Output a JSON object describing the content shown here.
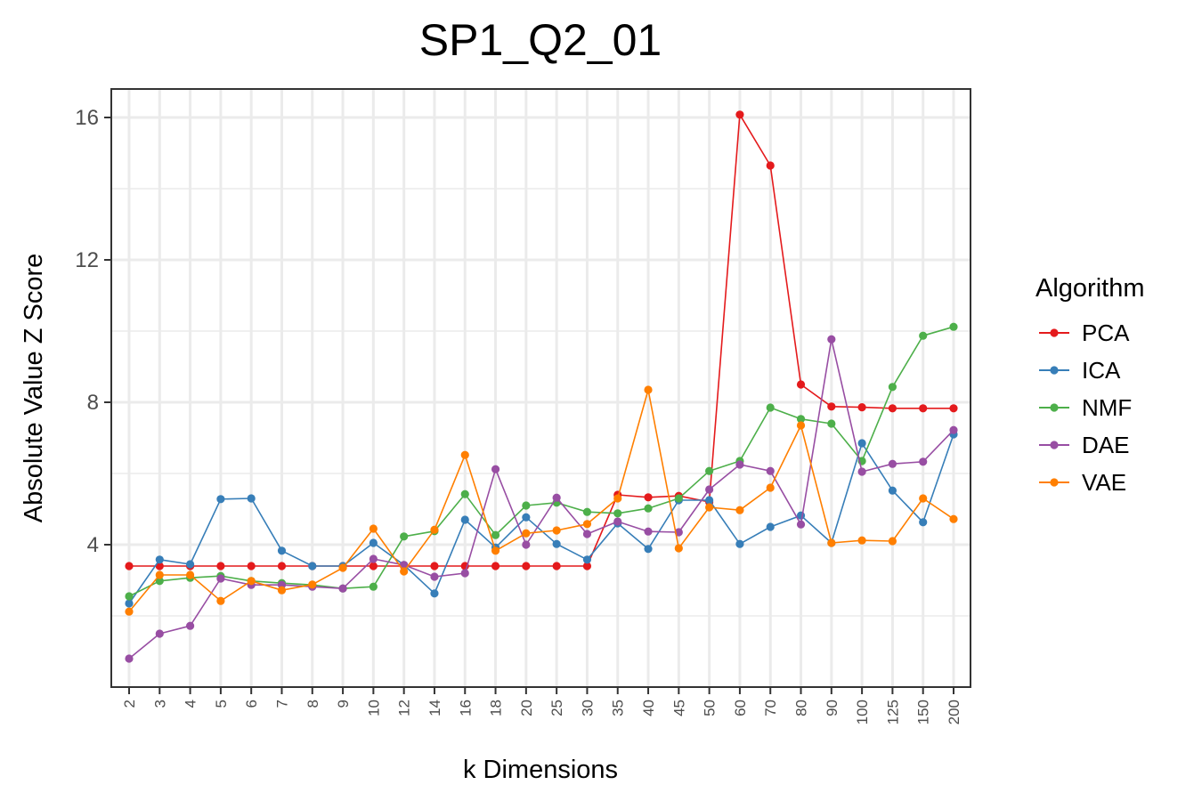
{
  "chart_data": {
    "type": "line",
    "title": "SP1_Q2_01",
    "xlabel": "k Dimensions",
    "ylabel": "Absolute Value Z Score",
    "categories": [
      "2",
      "3",
      "4",
      "5",
      "6",
      "7",
      "8",
      "9",
      "10",
      "12",
      "14",
      "16",
      "18",
      "20",
      "25",
      "30",
      "35",
      "40",
      "45",
      "50",
      "60",
      "70",
      "80",
      "90",
      "100",
      "125",
      "150",
      "200"
    ],
    "ylim": [
      0.0,
      16.8
    ],
    "yticks": [
      4,
      8,
      12,
      16
    ],
    "grid": true,
    "legend": {
      "title": "Algorithm",
      "position": "right"
    },
    "series": [
      {
        "name": "PCA",
        "color": "#E41A1C",
        "values": [
          3.4,
          3.4,
          3.4,
          3.4,
          3.4,
          3.4,
          3.4,
          3.4,
          3.4,
          3.4,
          3.4,
          3.4,
          3.4,
          3.4,
          3.4,
          3.4,
          5.4,
          5.33,
          5.37,
          5.2,
          16.08,
          14.65,
          8.5,
          7.88,
          7.86,
          7.83,
          7.83,
          7.83
        ]
      },
      {
        "name": "ICA",
        "color": "#377EB8",
        "values": [
          2.35,
          3.58,
          3.45,
          5.28,
          5.3,
          3.83,
          3.4,
          3.4,
          4.05,
          3.43,
          2.63,
          4.7,
          3.92,
          4.77,
          4.02,
          3.58,
          4.6,
          3.88,
          5.25,
          5.25,
          4.02,
          4.5,
          4.82,
          4.05,
          6.85,
          5.52,
          4.63,
          7.1
        ]
      },
      {
        "name": "NMF",
        "color": "#4DAF4A",
        "values": [
          2.55,
          2.98,
          3.07,
          3.12,
          2.98,
          2.92,
          2.87,
          2.77,
          2.82,
          4.23,
          4.38,
          5.42,
          4.27,
          5.1,
          5.18,
          4.92,
          4.88,
          5.02,
          5.3,
          6.07,
          6.35,
          7.85,
          7.53,
          7.4,
          6.35,
          8.43,
          9.87,
          10.12
        ]
      },
      {
        "name": "DAE",
        "color": "#984EA3",
        "values": [
          0.8,
          1.5,
          1.72,
          3.05,
          2.87,
          2.87,
          2.82,
          2.77,
          3.6,
          3.43,
          3.1,
          3.2,
          6.12,
          4.0,
          5.32,
          4.3,
          4.65,
          4.37,
          4.35,
          5.55,
          6.25,
          6.07,
          4.57,
          9.77,
          6.05,
          6.27,
          6.33,
          7.22
        ]
      },
      {
        "name": "VAE",
        "color": "#FF7F00",
        "values": [
          2.12,
          3.15,
          3.15,
          2.42,
          2.98,
          2.72,
          2.88,
          3.35,
          4.45,
          3.25,
          4.42,
          6.52,
          3.83,
          4.32,
          4.4,
          4.58,
          5.3,
          8.35,
          3.9,
          5.05,
          4.97,
          5.6,
          7.35,
          4.05,
          4.12,
          4.1,
          5.3,
          4.72
        ]
      }
    ]
  }
}
